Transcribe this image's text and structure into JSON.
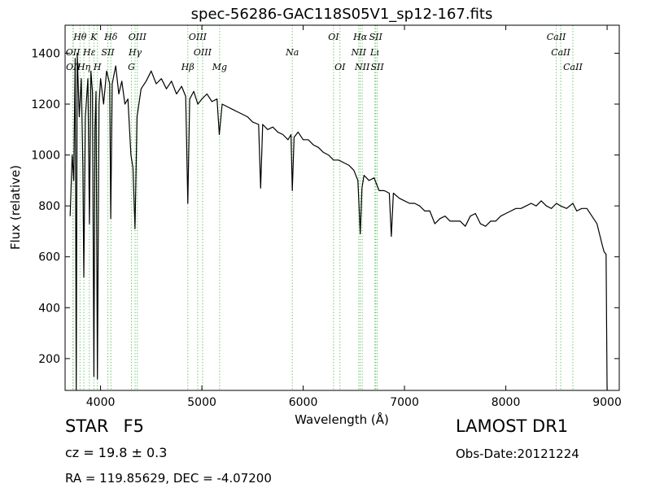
{
  "chart_data": {
    "type": "line",
    "title": "spec-56286-GAC118S05V1_sp12-167.fits",
    "xlabel": "Wavelength (Å)",
    "ylabel": "Flux (relative)",
    "xlim": [
      3650,
      9120
    ],
    "ylim": [
      75,
      1510
    ],
    "xticks": [
      4000,
      5000,
      6000,
      7000,
      8000,
      9000
    ],
    "yticks": [
      200,
      400,
      600,
      800,
      1000,
      1200,
      1400
    ],
    "grid": false,
    "series": [
      {
        "points": [
          [
            3700,
            760
          ],
          [
            3720,
            1000
          ],
          [
            3735,
            900
          ],
          [
            3750,
            1380
          ],
          [
            3760,
            60
          ],
          [
            3770,
            1400
          ],
          [
            3790,
            1150
          ],
          [
            3810,
            1300
          ],
          [
            3825,
            960
          ],
          [
            3835,
            520
          ],
          [
            3850,
            1150
          ],
          [
            3875,
            1300
          ],
          [
            3890,
            730
          ],
          [
            3905,
            1330
          ],
          [
            3920,
            1250
          ],
          [
            3934,
            130
          ],
          [
            3945,
            1100
          ],
          [
            3955,
            1250
          ],
          [
            3969,
            120
          ],
          [
            3985,
            1200
          ],
          [
            4000,
            1300
          ],
          [
            4030,
            1200
          ],
          [
            4060,
            1330
          ],
          [
            4090,
            1280
          ],
          [
            4101,
            750
          ],
          [
            4115,
            1280
          ],
          [
            4150,
            1350
          ],
          [
            4180,
            1240
          ],
          [
            4210,
            1290
          ],
          [
            4240,
            1200
          ],
          [
            4270,
            1220
          ],
          [
            4300,
            1000
          ],
          [
            4320,
            950
          ],
          [
            4340,
            710
          ],
          [
            4360,
            1150
          ],
          [
            4400,
            1260
          ],
          [
            4450,
            1290
          ],
          [
            4500,
            1330
          ],
          [
            4550,
            1280
          ],
          [
            4600,
            1300
          ],
          [
            4650,
            1260
          ],
          [
            4700,
            1290
          ],
          [
            4750,
            1240
          ],
          [
            4800,
            1270
          ],
          [
            4840,
            1230
          ],
          [
            4861,
            810
          ],
          [
            4880,
            1220
          ],
          [
            4920,
            1250
          ],
          [
            4960,
            1200
          ],
          [
            5000,
            1220
          ],
          [
            5050,
            1240
          ],
          [
            5100,
            1210
          ],
          [
            5150,
            1220
          ],
          [
            5172,
            1080
          ],
          [
            5200,
            1200
          ],
          [
            5250,
            1190
          ],
          [
            5300,
            1180
          ],
          [
            5350,
            1170
          ],
          [
            5400,
            1160
          ],
          [
            5450,
            1150
          ],
          [
            5500,
            1130
          ],
          [
            5560,
            1120
          ],
          [
            5580,
            870
          ],
          [
            5600,
            1120
          ],
          [
            5650,
            1100
          ],
          [
            5700,
            1110
          ],
          [
            5750,
            1090
          ],
          [
            5800,
            1080
          ],
          [
            5850,
            1060
          ],
          [
            5880,
            1080
          ],
          [
            5893,
            860
          ],
          [
            5910,
            1070
          ],
          [
            5950,
            1090
          ],
          [
            6000,
            1060
          ],
          [
            6050,
            1060
          ],
          [
            6100,
            1040
          ],
          [
            6150,
            1030
          ],
          [
            6200,
            1010
          ],
          [
            6250,
            1000
          ],
          [
            6300,
            980
          ],
          [
            6350,
            980
          ],
          [
            6400,
            970
          ],
          [
            6450,
            960
          ],
          [
            6500,
            940
          ],
          [
            6540,
            900
          ],
          [
            6563,
            690
          ],
          [
            6580,
            870
          ],
          [
            6600,
            920
          ],
          [
            6650,
            900
          ],
          [
            6700,
            910
          ],
          [
            6750,
            860
          ],
          [
            6800,
            860
          ],
          [
            6850,
            850
          ],
          [
            6870,
            680
          ],
          [
            6890,
            850
          ],
          [
            6950,
            830
          ],
          [
            7000,
            820
          ],
          [
            7050,
            810
          ],
          [
            7100,
            810
          ],
          [
            7150,
            800
          ],
          [
            7200,
            780
          ],
          [
            7250,
            780
          ],
          [
            7300,
            730
          ],
          [
            7350,
            750
          ],
          [
            7400,
            760
          ],
          [
            7450,
            740
          ],
          [
            7500,
            740
          ],
          [
            7550,
            740
          ],
          [
            7600,
            720
          ],
          [
            7650,
            760
          ],
          [
            7700,
            770
          ],
          [
            7750,
            730
          ],
          [
            7800,
            720
          ],
          [
            7850,
            740
          ],
          [
            7900,
            740
          ],
          [
            7950,
            760
          ],
          [
            8000,
            770
          ],
          [
            8050,
            780
          ],
          [
            8100,
            790
          ],
          [
            8150,
            790
          ],
          [
            8200,
            800
          ],
          [
            8250,
            810
          ],
          [
            8300,
            800
          ],
          [
            8350,
            820
          ],
          [
            8400,
            800
          ],
          [
            8450,
            790
          ],
          [
            8500,
            810
          ],
          [
            8542,
            800
          ],
          [
            8600,
            790
          ],
          [
            8662,
            810
          ],
          [
            8700,
            780
          ],
          [
            8750,
            790
          ],
          [
            8800,
            790
          ],
          [
            8850,
            760
          ],
          [
            8900,
            730
          ],
          [
            8950,
            650
          ],
          [
            8970,
            620
          ],
          [
            8990,
            610
          ],
          [
            9000,
            50
          ]
        ]
      }
    ],
    "line_markers": [
      {
        "label": "Hθ",
        "x": 3797,
        "row": 0
      },
      {
        "label": "K",
        "x": 3934,
        "row": 0
      },
      {
        "label": "Hδ",
        "x": 4102,
        "row": 0
      },
      {
        "label": "OIII",
        "x": 4363,
        "row": 0
      },
      {
        "label": "OIII",
        "x": 4959,
        "row": 0
      },
      {
        "label": "OI",
        "x": 6300,
        "row": 0
      },
      {
        "label": "Hα",
        "x": 6563,
        "row": 0
      },
      {
        "label": "SII",
        "x": 6716,
        "row": 0
      },
      {
        "label": "CaII",
        "x": 8498,
        "row": 0
      },
      {
        "label": "OII",
        "x": 3727,
        "row": 1
      },
      {
        "label": "Hε",
        "x": 3889,
        "row": 1
      },
      {
        "label": "SII",
        "x": 4072,
        "row": 1
      },
      {
        "label": "Hγ",
        "x": 4341,
        "row": 1
      },
      {
        "label": "OIII",
        "x": 5007,
        "row": 1
      },
      {
        "label": "Na",
        "x": 5893,
        "row": 1
      },
      {
        "label": "NII",
        "x": 6548,
        "row": 1
      },
      {
        "label": "Lι",
        "x": 6708,
        "row": 1
      },
      {
        "label": "CaII",
        "x": 8542,
        "row": 1
      },
      {
        "label": "OII",
        "x": 3730,
        "row": 2
      },
      {
        "label": "Hη",
        "x": 3835,
        "row": 2
      },
      {
        "label": "H",
        "x": 3969,
        "row": 2
      },
      {
        "label": "G",
        "x": 4305,
        "row": 2
      },
      {
        "label": "Hβ",
        "x": 4861,
        "row": 2
      },
      {
        "label": "Mg",
        "x": 5175,
        "row": 2
      },
      {
        "label": "OI",
        "x": 6363,
        "row": 2
      },
      {
        "label": "NII",
        "x": 6583,
        "row": 2
      },
      {
        "label": "SII",
        "x": 6731,
        "row": 2
      },
      {
        "label": "CaII",
        "x": 8662,
        "row": 2
      }
    ],
    "marker_color": "#4cbf4c",
    "line_color": "#000000"
  },
  "info": {
    "class_label": "STAR",
    "subclass": "F5",
    "cz_text": "cz = 19.8 ± 0.3",
    "radec_text": "RA = 119.85629, DEC = -4.07200",
    "survey": "LAMOST DR1",
    "obs_date": "Obs-Date:20121224"
  }
}
